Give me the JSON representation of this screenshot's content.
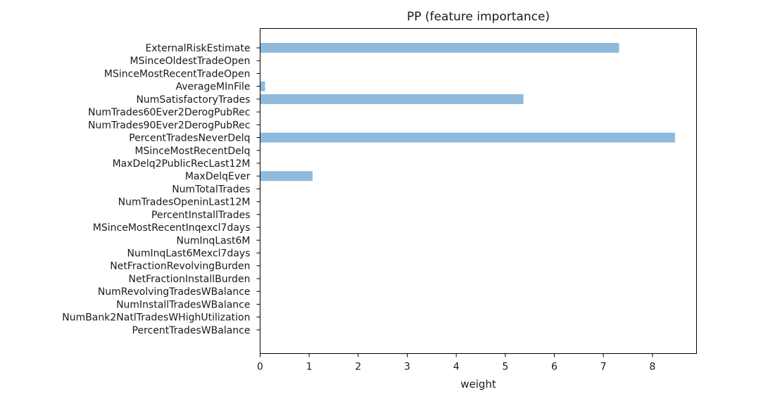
{
  "chart_data": {
    "type": "bar",
    "orientation": "horizontal",
    "title": "PP (feature importance)",
    "xlabel": "weight",
    "ylabel": "",
    "xlim": [
      0,
      8.9
    ],
    "xticks": [
      0,
      1,
      2,
      3,
      4,
      5,
      6,
      7,
      8
    ],
    "grid": false,
    "bar_color": "#8fbadb",
    "categories": [
      "ExternalRiskEstimate",
      "MSinceOldestTradeOpen",
      "MSinceMostRecentTradeOpen",
      "AverageMInFile",
      "NumSatisfactoryTrades",
      "NumTrades60Ever2DerogPubRec",
      "NumTrades90Ever2DerogPubRec",
      "PercentTradesNeverDelq",
      "MSinceMostRecentDelq",
      "MaxDelq2PublicRecLast12M",
      "MaxDelqEver",
      "NumTotalTrades",
      "NumTradesOpeninLast12M",
      "PercentInstallTrades",
      "MSinceMostRecentInqexcl7days",
      "NumInqLast6M",
      "NumInqLast6Mexcl7days",
      "NetFractionRevolvingBurden",
      "NetFractionInstallBurden",
      "NumRevolvingTradesWBalance",
      "NumInstallTradesWBalance",
      "NumBank2NatlTradesWHighUtilization",
      "PercentTradesWBalance"
    ],
    "values": [
      7.32,
      0,
      0,
      0.1,
      5.37,
      0,
      0,
      8.46,
      0,
      0,
      1.07,
      0,
      0,
      0,
      0,
      0,
      0,
      0,
      0,
      0,
      0,
      0,
      0
    ]
  }
}
